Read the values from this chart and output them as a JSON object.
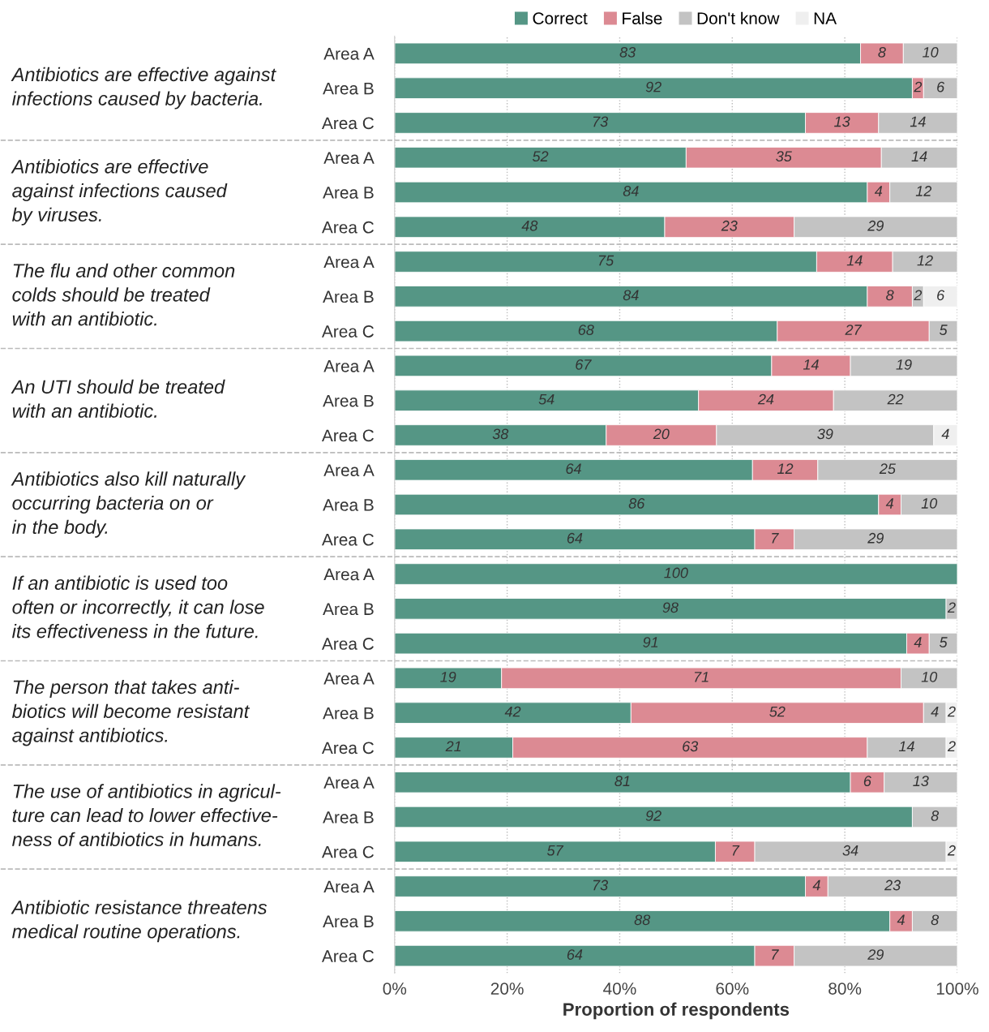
{
  "chart_data": {
    "type": "bar",
    "orientation": "horizontal",
    "stacked": true,
    "categories": [
      "Area A",
      "Area B",
      "Area C",
      "Area A",
      "Area B",
      "Area C",
      "Area A",
      "Area B",
      "Area C",
      "Area A",
      "Area B",
      "Area C",
      "Area A",
      "Area B",
      "Area C",
      "Area A",
      "Area B",
      "Area C",
      "Area A",
      "Area B",
      "Area C",
      "Area A",
      "Area B",
      "Area C",
      "Area A",
      "Area B",
      "Area C"
    ],
    "series": [
      {
        "name": "Correct",
        "color": "#559685",
        "values": [
          82.8,
          92,
          73,
          51.8,
          84,
          48,
          75.0,
          84,
          68,
          67,
          54,
          37.6,
          63.6,
          86,
          64,
          100,
          98,
          91,
          19,
          42,
          21,
          81,
          92,
          57,
          73,
          88,
          64
        ],
        "value_labels": [
          "83",
          "92",
          "73",
          "52",
          "84",
          "48",
          "75",
          "84",
          "68",
          "67",
          "54",
          "38",
          "64",
          "86",
          "64",
          "100",
          "98",
          "91",
          "19",
          "42",
          "21",
          "81",
          "92",
          "57",
          "73",
          "88",
          "64"
        ]
      },
      {
        "name": "False",
        "color": "#dc8a93",
        "values": [
          7.6,
          2,
          13,
          34.7,
          4,
          23,
          13.5,
          8,
          27,
          14,
          24,
          19.6,
          11.6,
          4,
          7,
          null,
          null,
          4,
          71,
          52,
          63,
          6,
          null,
          7,
          4,
          4,
          7
        ],
        "value_labels": [
          "8",
          "2",
          "13",
          "35",
          "4",
          "23",
          "14",
          "8",
          "27",
          "14",
          "24",
          "20",
          "12",
          "4",
          "7",
          null,
          null,
          "4",
          "71",
          "52",
          "63",
          "6",
          null,
          "7",
          "4",
          "4",
          "7"
        ]
      },
      {
        "name": "Don't know",
        "color": "#c3c3c3",
        "values": [
          9.6,
          6,
          14,
          13.5,
          12,
          29,
          11.5,
          2,
          5,
          19,
          22,
          38.6,
          24.8,
          10,
          29,
          null,
          2,
          5,
          10,
          4,
          14,
          13,
          8,
          34,
          23,
          8,
          29
        ],
        "value_labels": [
          "10",
          "6",
          "14",
          "14",
          "12",
          "29",
          "12",
          "2",
          "5",
          "19",
          "22",
          "39",
          "25",
          "10",
          "29",
          null,
          "2",
          "5",
          "10",
          "4",
          "14",
          "13",
          "8",
          "34",
          "23",
          "8",
          "29"
        ]
      },
      {
        "name": "NA",
        "color": "#efefef",
        "values": [
          null,
          null,
          null,
          null,
          null,
          null,
          null,
          6,
          null,
          null,
          null,
          4.2,
          null,
          null,
          null,
          null,
          null,
          null,
          null,
          2,
          2,
          null,
          null,
          2,
          null,
          null,
          null
        ],
        "value_labels": [
          null,
          null,
          null,
          null,
          null,
          null,
          null,
          "6",
          null,
          null,
          null,
          "4",
          null,
          null,
          null,
          null,
          null,
          null,
          null,
          "2",
          "2",
          null,
          null,
          "2",
          null,
          null,
          null
        ]
      }
    ],
    "xlim": [
      0,
      100
    ],
    "xticks": [
      {
        "value": 0,
        "label": "0%"
      },
      {
        "value": 20,
        "label": "20%"
      },
      {
        "value": 40,
        "label": "40%"
      },
      {
        "value": 60,
        "label": "60%"
      },
      {
        "value": 80,
        "label": "80%"
      },
      {
        "value": 100,
        "label": "100%"
      }
    ],
    "xlabel": "Proportion of respondents",
    "grid": "x",
    "legend": "top",
    "annotations": [
      "Antibiotics are effective against\ninfections caused by bacteria.",
      "Antibiotics are effective\nagainst infections caused\nby viruses.",
      "The flu and other common\ncolds should be treated\nwith an antibiotic.",
      "An UTI should be treated\nwith an antibiotic.",
      "Antibiotics also kill naturally\noccurring bacteria on or\nin the body.",
      "If an antibiotic is used too\noften or incorrectly, it can lose\nits effectiveness in the future.",
      "The person that takes anti-\nbiotics will become resistant\nagainst antibiotics.",
      "The use of antibiotics in agricul-\nture can lead to lower effective-\nness of antibiotics in humans.",
      "Antibiotic resistance threatens\nmedical routine operations."
    ]
  }
}
